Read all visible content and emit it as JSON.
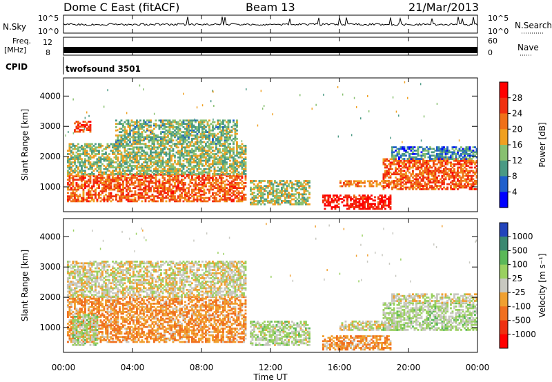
{
  "header": {
    "station": "Dome C East (fitACF)",
    "beam": "Beam 13",
    "date": "21/Mar/2013"
  },
  "param_panels": {
    "nsky_label": "N.Sky",
    "nsearch_label": "N.Search",
    "nsky_ticks": [
      "10^5",
      "10^0"
    ],
    "nsearch_ticks": [
      "10^5",
      "10^0"
    ],
    "freq_label": "Freq.",
    "freq_unit": "[MHz]",
    "freq_ticks": [
      "12",
      "8"
    ],
    "nave_label": "Nave",
    "nave_ticks": [
      "60",
      "0"
    ],
    "cpid_label": "CPID",
    "cpid_value": "twofsound 3501"
  },
  "axes": {
    "xlabel": "Time UT",
    "xticks": [
      "00:00",
      "04:00",
      "08:00",
      "12:00",
      "16:00",
      "20:00",
      "00:00"
    ],
    "ylabel": "Slant Range [km]",
    "yticks": [
      "1000",
      "2000",
      "3000",
      "4000"
    ]
  },
  "colorbars": {
    "power": {
      "label": "Power [dB]",
      "ticks": [
        "4",
        "8",
        "12",
        "16",
        "20",
        "24",
        "28"
      ],
      "colors": [
        "#0000ff",
        "#1f5fcc",
        "#4a9a84",
        "#88c070",
        "#f0a020",
        "#f07018",
        "#f03010",
        "#ff0000"
      ]
    },
    "velocity": {
      "label": "Velocity [m s⁻¹]",
      "ticks": [
        "1000",
        "500",
        "100",
        "25",
        "-25",
        "-100",
        "-500",
        "-1000"
      ],
      "colors": [
        "#2244bb",
        "#3a8870",
        "#5ab858",
        "#9ad060",
        "#c8c8c0",
        "#f0a030",
        "#f07020",
        "#ee3010",
        "#ff0000"
      ]
    }
  },
  "chart_data": [
    {
      "type": "heatmap",
      "title": "Power [dB]",
      "xlabel": "Time UT",
      "ylabel": "Slant Range [km]",
      "xlim": [
        0,
        24
      ],
      "ylim": [
        180,
        4600
      ],
      "colorbar_range": [
        0,
        30
      ],
      "regions": [
        {
          "t": [
            0.2,
            10.5
          ],
          "r": [
            500,
            1400
          ],
          "value": 22
        },
        {
          "t": [
            0.2,
            10.5
          ],
          "r": [
            1400,
            2400
          ],
          "value": 13
        },
        {
          "t": [
            0.6,
            1.6
          ],
          "r": [
            2800,
            3150
          ],
          "value": 24
        },
        {
          "t": [
            3.0,
            10.0
          ],
          "r": [
            2400,
            3200
          ],
          "value": 12
        },
        {
          "t": [
            10.8,
            14.2
          ],
          "r": [
            400,
            1200
          ],
          "value": 14
        },
        {
          "t": [
            15.0,
            19.0
          ],
          "r": [
            250,
            700
          ],
          "value": 27
        },
        {
          "t": [
            16.0,
            19.5
          ],
          "r": [
            1000,
            1200
          ],
          "value": 20
        },
        {
          "t": [
            18.5,
            24.0
          ],
          "r": [
            900,
            1900
          ],
          "value": 22
        },
        {
          "t": [
            19.0,
            24.0
          ],
          "r": [
            1900,
            2300
          ],
          "value": 8
        }
      ]
    },
    {
      "type": "heatmap",
      "title": "Velocity [m s⁻¹]",
      "xlabel": "Time UT",
      "ylabel": "Slant Range [km]",
      "xlim": [
        0,
        24
      ],
      "ylim": [
        180,
        4600
      ],
      "colorbar_range": [
        -1000,
        1000
      ],
      "regions": [
        {
          "t": [
            0.2,
            10.5
          ],
          "r": [
            500,
            2000
          ],
          "value": -300
        },
        {
          "t": [
            0.5,
            2.0
          ],
          "r": [
            400,
            1400
          ],
          "value": 150
        },
        {
          "t": [
            0.2,
            10.5
          ],
          "r": [
            2000,
            3200
          ],
          "value": 0
        },
        {
          "t": [
            10.8,
            14.2
          ],
          "r": [
            400,
            1200
          ],
          "value": 120
        },
        {
          "t": [
            15.0,
            19.0
          ],
          "r": [
            250,
            700
          ],
          "value": -300
        },
        {
          "t": [
            16.0,
            19.5
          ],
          "r": [
            900,
            1200
          ],
          "value": 0
        },
        {
          "t": [
            18.5,
            24.0
          ],
          "r": [
            900,
            1800
          ],
          "value": 150
        },
        {
          "t": [
            19.0,
            24.0
          ],
          "r": [
            1800,
            2100
          ],
          "value": 0
        }
      ]
    }
  ]
}
